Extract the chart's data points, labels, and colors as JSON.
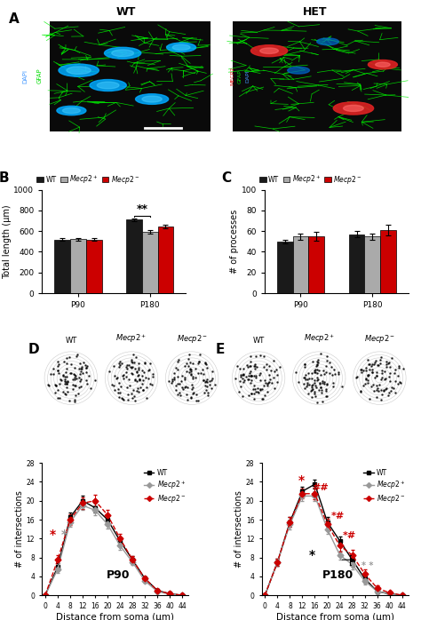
{
  "legend_labels": [
    "WT",
    "$\\it{Mecp2}$$^+$",
    "$\\it{Mecp2}$$^-$"
  ],
  "legend_labels_line": [
    "WT",
    "$\\it{Mecp2}$$^+$",
    "$\\it{Mecp2}$$^-$"
  ],
  "bar_colors": [
    "#1a1a1a",
    "#aaaaaa",
    "#cc0000"
  ],
  "bar_width": 0.22,
  "panel_B_groups": [
    "P90",
    "P180"
  ],
  "panel_B_values": [
    [
      520,
      523,
      518
    ],
    [
      712,
      595,
      642
    ]
  ],
  "panel_B_errors": [
    [
      10,
      12,
      14
    ],
    [
      14,
      16,
      18
    ]
  ],
  "panel_B_ylim": [
    0,
    1000
  ],
  "panel_B_yticks": [
    0,
    200,
    400,
    600,
    800,
    1000
  ],
  "panel_B_ylabel": "Total length (μm)",
  "panel_B_sig_group": 1,
  "panel_B_sig_bars": [
    0,
    1
  ],
  "panel_B_sig_label": "**",
  "panel_C_groups": [
    "P90",
    "P180"
  ],
  "panel_C_values": [
    [
      50,
      55,
      55
    ],
    [
      57,
      55,
      61
    ]
  ],
  "panel_C_errors": [
    [
      2,
      3,
      4
    ],
    [
      3,
      3,
      5
    ]
  ],
  "panel_C_ylim": [
    0,
    100
  ],
  "panel_C_yticks": [
    0,
    20,
    40,
    60,
    80,
    100
  ],
  "panel_C_ylabel": "# of processes",
  "sholl_x": [
    0,
    4,
    8,
    12,
    16,
    20,
    24,
    28,
    32,
    36,
    40,
    44
  ],
  "P90_WT": [
    0,
    6.0,
    16.5,
    20.0,
    18.5,
    16.0,
    11.5,
    7.5,
    3.5,
    1.0,
    0.3,
    0.0
  ],
  "P90_Het": [
    0,
    5.5,
    15.5,
    19.0,
    18.0,
    15.0,
    10.5,
    7.0,
    3.0,
    0.8,
    0.2,
    0.0
  ],
  "P90_Hom": [
    0,
    7.5,
    16.0,
    19.5,
    20.0,
    17.0,
    12.0,
    7.5,
    3.5,
    1.0,
    0.3,
    0.0
  ],
  "P90_WT_err": [
    0,
    0.8,
    1.0,
    1.0,
    1.0,
    0.9,
    0.8,
    0.7,
    0.5,
    0.3,
    0.1,
    0
  ],
  "P90_Het_err": [
    0,
    0.8,
    1.0,
    1.0,
    1.0,
    0.9,
    0.8,
    0.6,
    0.4,
    0.2,
    0.1,
    0
  ],
  "P90_Hom_err": [
    0,
    1.0,
    1.2,
    1.2,
    1.2,
    1.0,
    0.9,
    0.7,
    0.5,
    0.3,
    0.1,
    0
  ],
  "P180_WT": [
    0,
    7.0,
    15.5,
    22.0,
    23.5,
    15.5,
    11.5,
    7.5,
    3.5,
    0.8,
    0.3,
    0.0
  ],
  "P180_Het": [
    0,
    7.0,
    15.0,
    21.0,
    21.0,
    14.0,
    8.5,
    6.5,
    3.0,
    0.8,
    0.2,
    0.0
  ],
  "P180_Hom": [
    0,
    7.0,
    15.5,
    21.5,
    21.5,
    15.0,
    10.5,
    8.5,
    4.5,
    1.5,
    0.5,
    0.0
  ],
  "P180_WT_err": [
    0,
    0.8,
    1.0,
    1.0,
    1.0,
    1.0,
    1.0,
    1.0,
    0.8,
    0.4,
    0.2,
    0
  ],
  "P180_Het_err": [
    0,
    0.8,
    1.0,
    1.0,
    1.0,
    1.0,
    1.0,
    1.0,
    0.8,
    0.3,
    0.2,
    0
  ],
  "P180_Hom_err": [
    0,
    0.8,
    1.0,
    1.0,
    1.2,
    1.2,
    1.2,
    1.2,
    1.0,
    0.5,
    0.2,
    0
  ],
  "line_colors": [
    "black",
    "#999999",
    "#cc0000"
  ],
  "line_styles": [
    "-",
    "-",
    "--"
  ],
  "markers": [
    "s",
    "D",
    "D"
  ],
  "D_titles": [
    "WT",
    "$\\it{Mecp2}$$^+$",
    "$\\it{Mecp2}$$^-$"
  ],
  "E_titles": [
    "WT",
    "$\\it{Mecp2}$$^+$",
    "$\\it{Mecp2}$$^-$"
  ]
}
